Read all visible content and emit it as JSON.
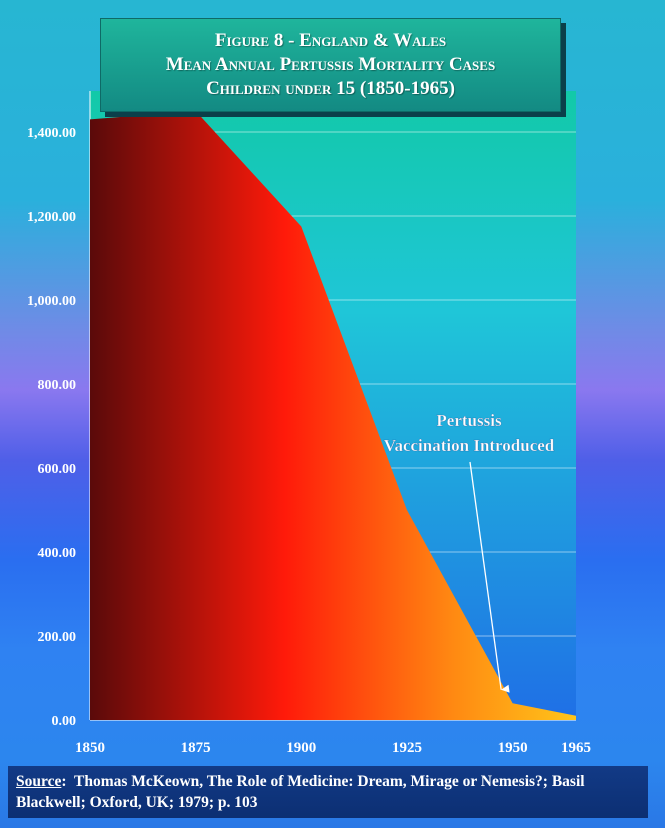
{
  "title": {
    "line1": "Figure 8 - England & Wales",
    "line2": "Mean Annual Pertussis Mortality Cases",
    "line3": "Children under 15 (1850-1965)"
  },
  "source": {
    "label": "Source",
    "text": "Thomas McKeown, The Role of Medicine: Dream, Mirage or Nemesis?; Basil Blackwell; Oxford, UK; 1979; p. 103"
  },
  "colors": {
    "plot_top": "#12c9a8",
    "plot_bottom": "#1f6fe6",
    "area_left": "#5a0a0a",
    "area_mid": "#ff1a0a",
    "area_right": "#ffc51a",
    "annotation": "#ffffff"
  },
  "chart_data": {
    "type": "area",
    "title": "Figure 8 - England & Wales Mean Annual Pertussis Mortality Cases Children under 15 (1850-1965)",
    "x": [
      1850,
      1875,
      1900,
      1925,
      1950,
      1965
    ],
    "values": [
      1430,
      1450,
      1175,
      500,
      40,
      10
    ],
    "x_ticks": [
      "1850",
      "1875",
      "1900",
      "1925",
      "1950",
      "1965"
    ],
    "y_ticks": [
      "0.00",
      "200.00",
      "400.00",
      "600.00",
      "800.00",
      "1,000.00",
      "1,200.00",
      "1,400.00"
    ],
    "ylim": [
      0,
      1400
    ],
    "xlim": [
      1850,
      1965
    ],
    "xlabel": "",
    "ylabel": "",
    "grid": true,
    "annotation": {
      "line1": "Pertussis",
      "line2": "Vaccination Introduced",
      "arrow_to_year": 1948,
      "arrow_to_value": 60
    }
  }
}
